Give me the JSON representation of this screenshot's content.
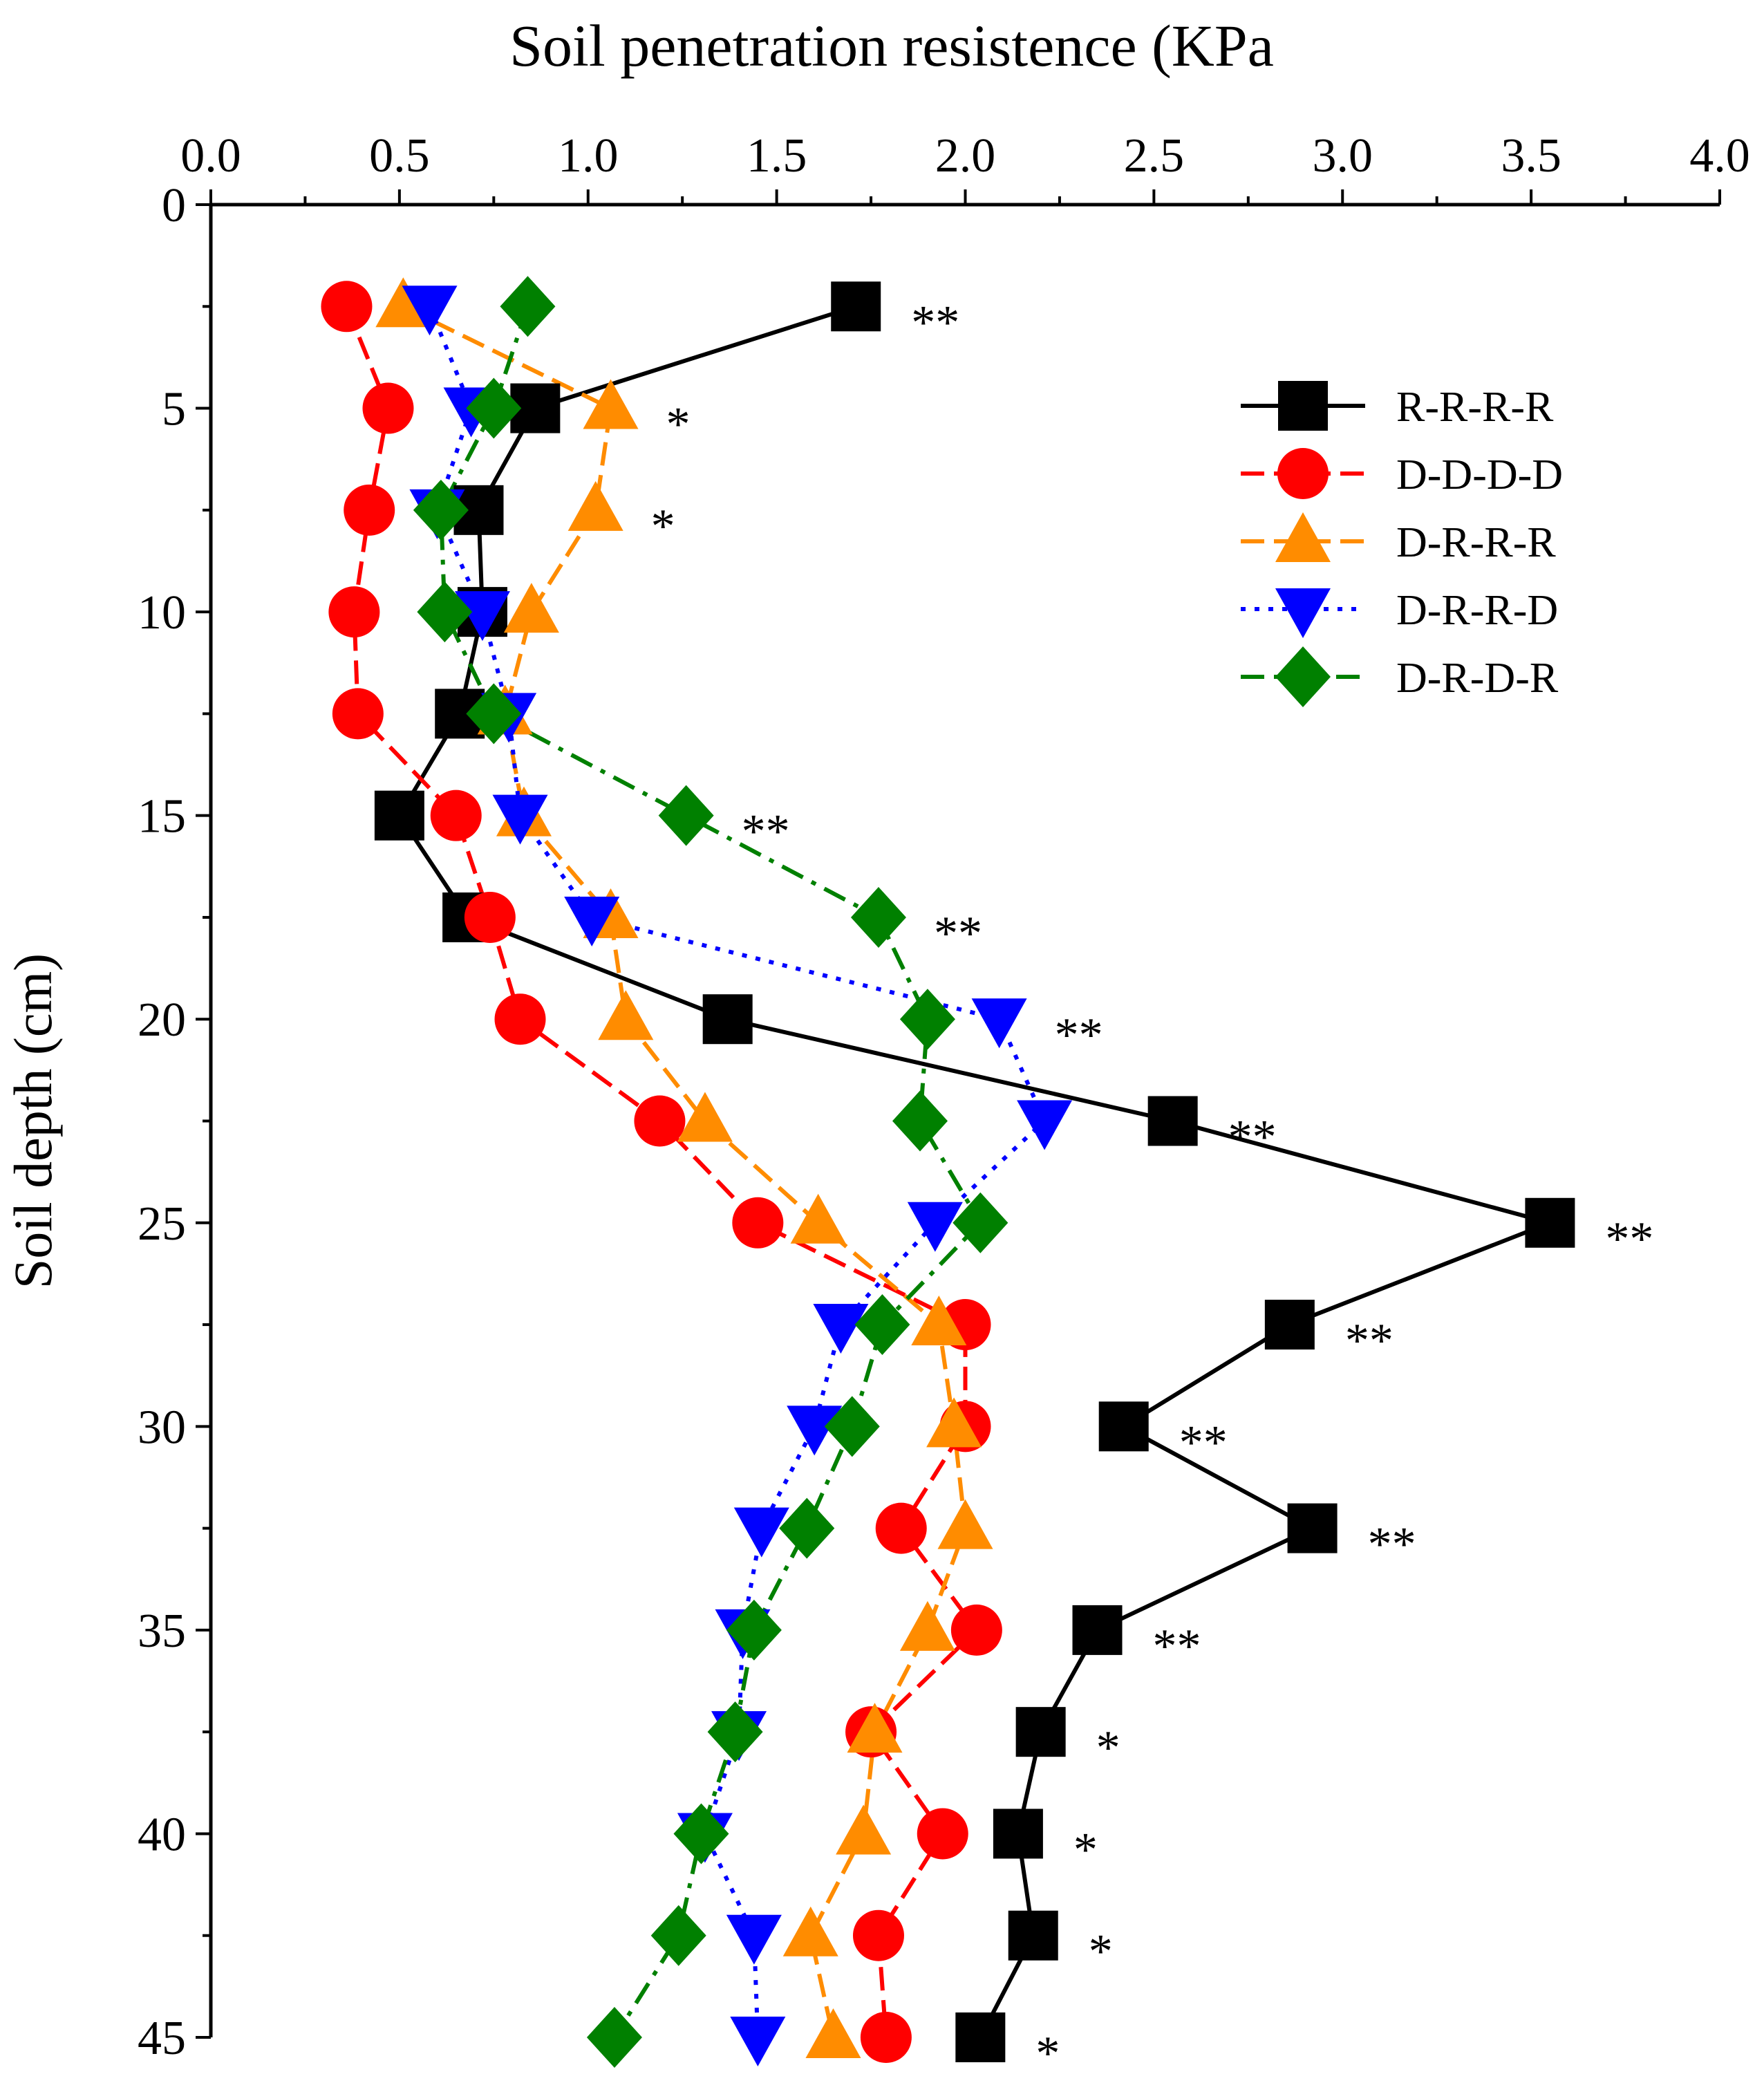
{
  "chart_data": {
    "type": "line",
    "orientation": "depth-profile",
    "title": "Soil penetration resistence (KPa",
    "xlabel": "Soil penetration resistence (KPa",
    "ylabel": "Soil depth (cm)",
    "xlim": [
      0.0,
      4.0
    ],
    "ylim": [
      0,
      45
    ],
    "x_ticks": [
      "0.0",
      "0.5",
      "1.0",
      "1.5",
      "2.0",
      "2.5",
      "3.0",
      "3.5",
      "4.0"
    ],
    "x_tick_values": [
      0,
      0.5,
      1.0,
      1.5,
      2.0,
      2.5,
      3.0,
      3.5,
      4.0
    ],
    "y_ticks": [
      "0",
      "5",
      "10",
      "15",
      "20",
      "25",
      "30",
      "35",
      "40",
      "45"
    ],
    "y_tick_values": [
      0,
      5,
      10,
      15,
      20,
      25,
      30,
      35,
      40,
      45
    ],
    "legend_position": "top-right",
    "depths": [
      2.5,
      5,
      7.5,
      10,
      12.5,
      15,
      17.5,
      20,
      22.5,
      25,
      27.5,
      30,
      32.5,
      35,
      37.5,
      40,
      42.5,
      45
    ],
    "series": [
      {
        "name": "R-R-R-R",
        "color": "#000000",
        "marker": "square",
        "line_style": "solid",
        "values": [
          1.71,
          0.86,
          0.71,
          0.72,
          0.66,
          0.5,
          0.68,
          1.37,
          2.55,
          3.55,
          2.86,
          2.42,
          2.92,
          2.35,
          2.2,
          2.14,
          2.18,
          2.04
        ]
      },
      {
        "name": "D-D-D-D",
        "color": "#ff0000",
        "marker": "circle",
        "line_style": "dashed",
        "values": [
          0.36,
          0.47,
          0.42,
          0.38,
          0.39,
          0.65,
          0.74,
          0.82,
          1.19,
          1.45,
          2.0,
          2.0,
          1.83,
          2.03,
          1.75,
          1.94,
          1.77,
          1.79
        ]
      },
      {
        "name": "D-R-R-R",
        "color": "#ff8c00",
        "marker": "triangle-up",
        "line_style": "dashed",
        "values": [
          0.51,
          1.06,
          1.02,
          0.85,
          0.78,
          0.83,
          1.06,
          1.1,
          1.31,
          1.61,
          1.93,
          1.97,
          2.0,
          1.9,
          1.76,
          1.73,
          1.59,
          1.65
        ]
      },
      {
        "name": "D-R-R-D",
        "color": "#0000ff",
        "marker": "triangle-down",
        "line_style": "dotted",
        "values": [
          0.58,
          0.69,
          0.6,
          0.72,
          0.79,
          0.82,
          1.01,
          2.09,
          2.21,
          1.92,
          1.67,
          1.6,
          1.46,
          1.41,
          1.4,
          1.31,
          1.44,
          1.45
        ]
      },
      {
        "name": "D-R-D-R",
        "color": "#008000",
        "marker": "diamond",
        "line_style": "dash-dot",
        "values": [
          0.84,
          0.75,
          0.61,
          0.62,
          0.75,
          1.26,
          1.77,
          1.9,
          1.88,
          2.04,
          1.78,
          1.7,
          1.58,
          1.44,
          1.39,
          1.3,
          1.24,
          1.07
        ]
      }
    ],
    "annotations": [
      {
        "depth": 2.5,
        "text": "**"
      },
      {
        "depth": 5,
        "text": "*"
      },
      {
        "depth": 7.5,
        "text": "*"
      },
      {
        "depth": 15,
        "text": "**"
      },
      {
        "depth": 17.5,
        "text": "**"
      },
      {
        "depth": 20,
        "text": "**"
      },
      {
        "depth": 22.5,
        "text": "**"
      },
      {
        "depth": 25,
        "text": "**"
      },
      {
        "depth": 27.5,
        "text": "**"
      },
      {
        "depth": 30,
        "text": "**"
      },
      {
        "depth": 32.5,
        "text": "**"
      },
      {
        "depth": 35,
        "text": "**"
      },
      {
        "depth": 37.5,
        "text": "*"
      },
      {
        "depth": 40,
        "text": "*"
      },
      {
        "depth": 42.5,
        "text": "*"
      },
      {
        "depth": 45,
        "text": "*"
      }
    ]
  }
}
